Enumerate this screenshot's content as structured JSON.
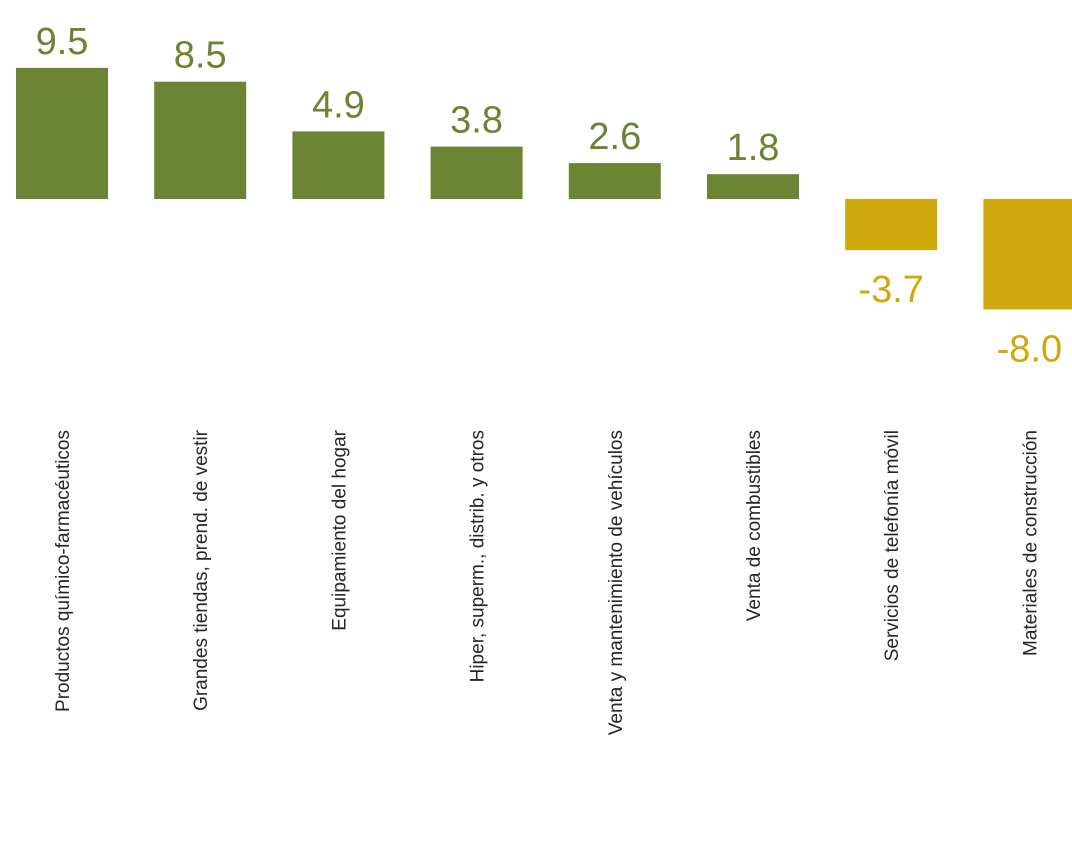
{
  "chart_data": {
    "type": "bar",
    "title": "",
    "xlabel": "",
    "ylabel": "",
    "categories": [
      "Productos químico-farmacéuticos",
      "Grandes tiendas, prend. de vestir",
      "Equipamiento del hogar",
      "Hiper, superm., distrib. y otros",
      "Venta y mantenimiento de vehículos",
      "Venta de combustibles",
      "Servicios de telefonía móvil",
      "Materiales de construcción"
    ],
    "values": [
      9.5,
      8.5,
      4.9,
      3.8,
      2.6,
      1.8,
      -3.7,
      -8.0
    ],
    "value_labels": [
      "9.5",
      "8.5",
      "4.9",
      "3.8",
      "2.6",
      "1.8",
      "-3.7",
      "-8.0"
    ],
    "ylim": [
      -8.0,
      9.5
    ],
    "grid": false,
    "legend": "none",
    "colors": {
      "positive": "#6B8433",
      "negative": "#CFA80C"
    }
  }
}
